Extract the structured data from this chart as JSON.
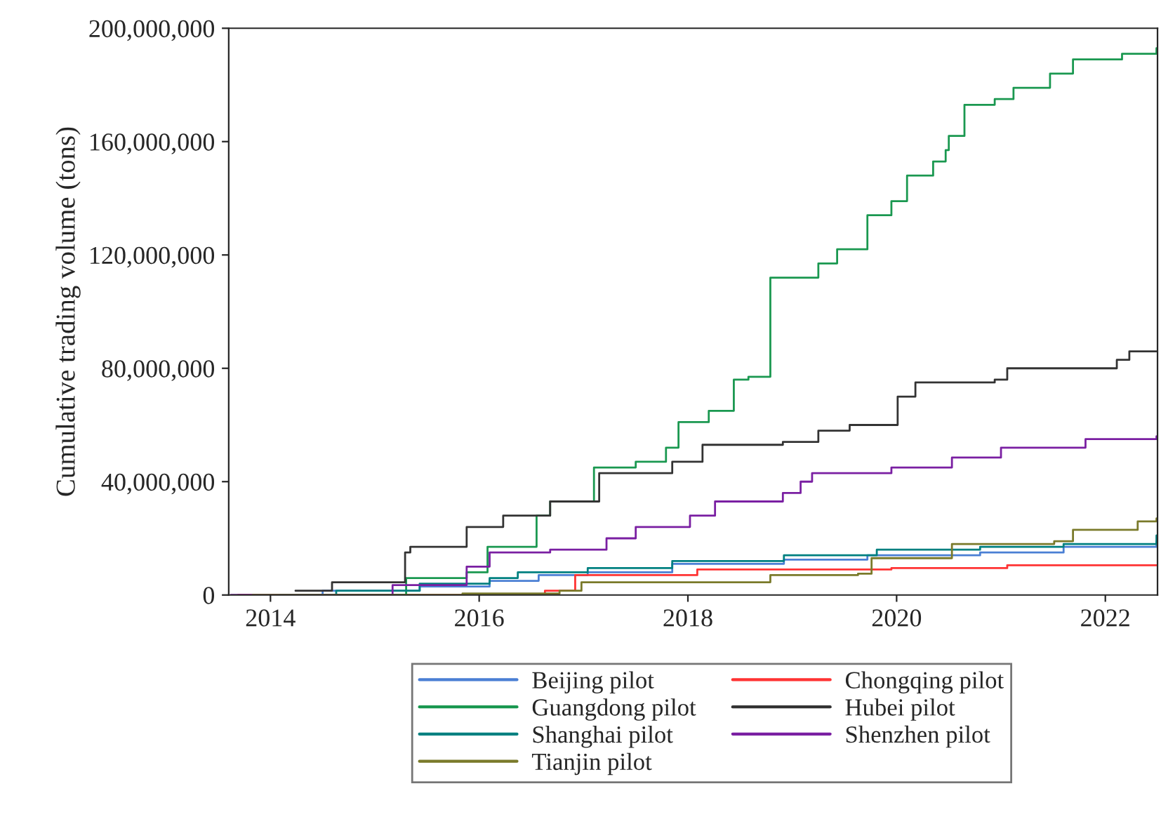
{
  "chart_data": {
    "type": "step",
    "ylabel": "Cumulative trading volume (tons)",
    "xlim": [
      2013.6,
      2022.5
    ],
    "xticks": [
      2014,
      2016,
      2018,
      2020,
      2022
    ],
    "ylim": [
      0,
      200000000
    ],
    "yticks": [
      0,
      {
        "value": 40000000,
        "label": "40,000,000"
      },
      {
        "value": 80000000,
        "label": "80,000,000"
      },
      {
        "value": 120000000,
        "label": "120,000,000"
      },
      {
        "value": 160000000,
        "label": "160,000,000"
      },
      {
        "value": 200000000,
        "label": "200,000,000"
      }
    ],
    "grid": false,
    "legend": "bottom",
    "series": [
      {
        "name": "Beijing pilot",
        "color": "#4a7fd4",
        "x": [
          2014.09,
          2014.5,
          2015.43,
          2016.1,
          2016.57,
          2017.04,
          2017.85,
          2018.92,
          2019.72,
          2020.8,
          2021.6,
          2022.49
        ],
        "values": [
          0,
          1500000,
          3000000,
          5000000,
          7000000,
          8000000,
          11000000,
          12500000,
          14000000,
          15000000,
          17000000,
          19000000
        ]
      },
      {
        "name": "Chongqing pilot",
        "color": "#ff3333",
        "x": [
          2013.69,
          2015.17,
          2016.63,
          2016.92,
          2018.09,
          2019.95,
          2021.06,
          2022.49
        ],
        "values": [
          0,
          0,
          1500000,
          7000000,
          9000000,
          9500000,
          10500000,
          10500000
        ]
      },
      {
        "name": "Guangdong pilot",
        "color": "#1a9850",
        "x": [
          2014.09,
          2015.3,
          2015.88,
          2016.08,
          2016.55,
          2016.68,
          2017.1,
          2017.5,
          2017.79,
          2017.91,
          2018.2,
          2018.44,
          2018.58,
          2018.79,
          2019.08,
          2019.25,
          2019.43,
          2019.72,
          2019.95,
          2020.1,
          2020.35,
          2020.47,
          2020.5,
          2020.65,
          2020.94,
          2021.12,
          2021.47,
          2021.69,
          2022.16,
          2022.49
        ],
        "values": [
          0,
          6000000,
          8000000,
          17000000,
          28000000,
          33000000,
          45000000,
          47000000,
          52000000,
          61000000,
          65000000,
          76000000,
          77000000,
          112000000,
          112000000,
          117000000,
          122000000,
          134000000,
          139000000,
          148000000,
          153000000,
          157000000,
          162000000,
          173000000,
          175000000,
          179000000,
          184000000,
          189000000,
          191000000,
          193000000
        ]
      },
      {
        "name": "Hubei pilot",
        "color": "#333333",
        "x": [
          2014.24,
          2014.59,
          2015.29,
          2015.34,
          2015.88,
          2016.23,
          2016.68,
          2017.15,
          2017.85,
          2018.14,
          2018.91,
          2019.25,
          2019.55,
          2020.01,
          2020.18,
          2020.94,
          2021.06,
          2022.11,
          2022.23,
          2022.49
        ],
        "values": [
          1500000,
          4500000,
          15000000,
          17000000,
          24000000,
          28000000,
          33000000,
          43000000,
          47000000,
          53000000,
          54000000,
          58000000,
          60000000,
          70000000,
          75000000,
          76000000,
          80000000,
          83000000,
          86000000,
          86000000
        ]
      },
      {
        "name": "Shanghai pilot",
        "color": "#008080",
        "x": [
          2014.09,
          2014.63,
          2015.43,
          2016.1,
          2016.37,
          2017.04,
          2017.85,
          2018.92,
          2019.81,
          2020.8,
          2021.6,
          2022.49
        ],
        "values": [
          0,
          1500000,
          4000000,
          6000000,
          8000000,
          9500000,
          12000000,
          14000000,
          16000000,
          17000000,
          18000000,
          21000000
        ]
      },
      {
        "name": "Shenzhen pilot",
        "color": "#7a1fa2",
        "x": [
          2013.62,
          2015.17,
          2015.88,
          2016.1,
          2016.68,
          2017.22,
          2017.5,
          2018.02,
          2018.26,
          2018.91,
          2019.08,
          2019.19,
          2019.95,
          2020.53,
          2021.0,
          2021.69,
          2021.81,
          2022.49
        ],
        "values": [
          0,
          3500000,
          10000000,
          15000000,
          16000000,
          20000000,
          24000000,
          28000000,
          33000000,
          36000000,
          40000000,
          43000000,
          45000000,
          48500000,
          52000000,
          52000000,
          55000000,
          56000000
        ]
      },
      {
        "name": "Tianjin pilot",
        "color": "#7a7a2a",
        "x": [
          2013.83,
          2015.84,
          2016.77,
          2016.98,
          2017.85,
          2018.79,
          2019.63,
          2019.76,
          2020.53,
          2021.51,
          2021.69,
          2022.31,
          2022.49
        ],
        "values": [
          0,
          500000,
          1500000,
          4500000,
          4500000,
          7000000,
          7500000,
          13000000,
          18000000,
          19000000,
          23000000,
          26000000,
          27000000
        ]
      }
    ]
  }
}
